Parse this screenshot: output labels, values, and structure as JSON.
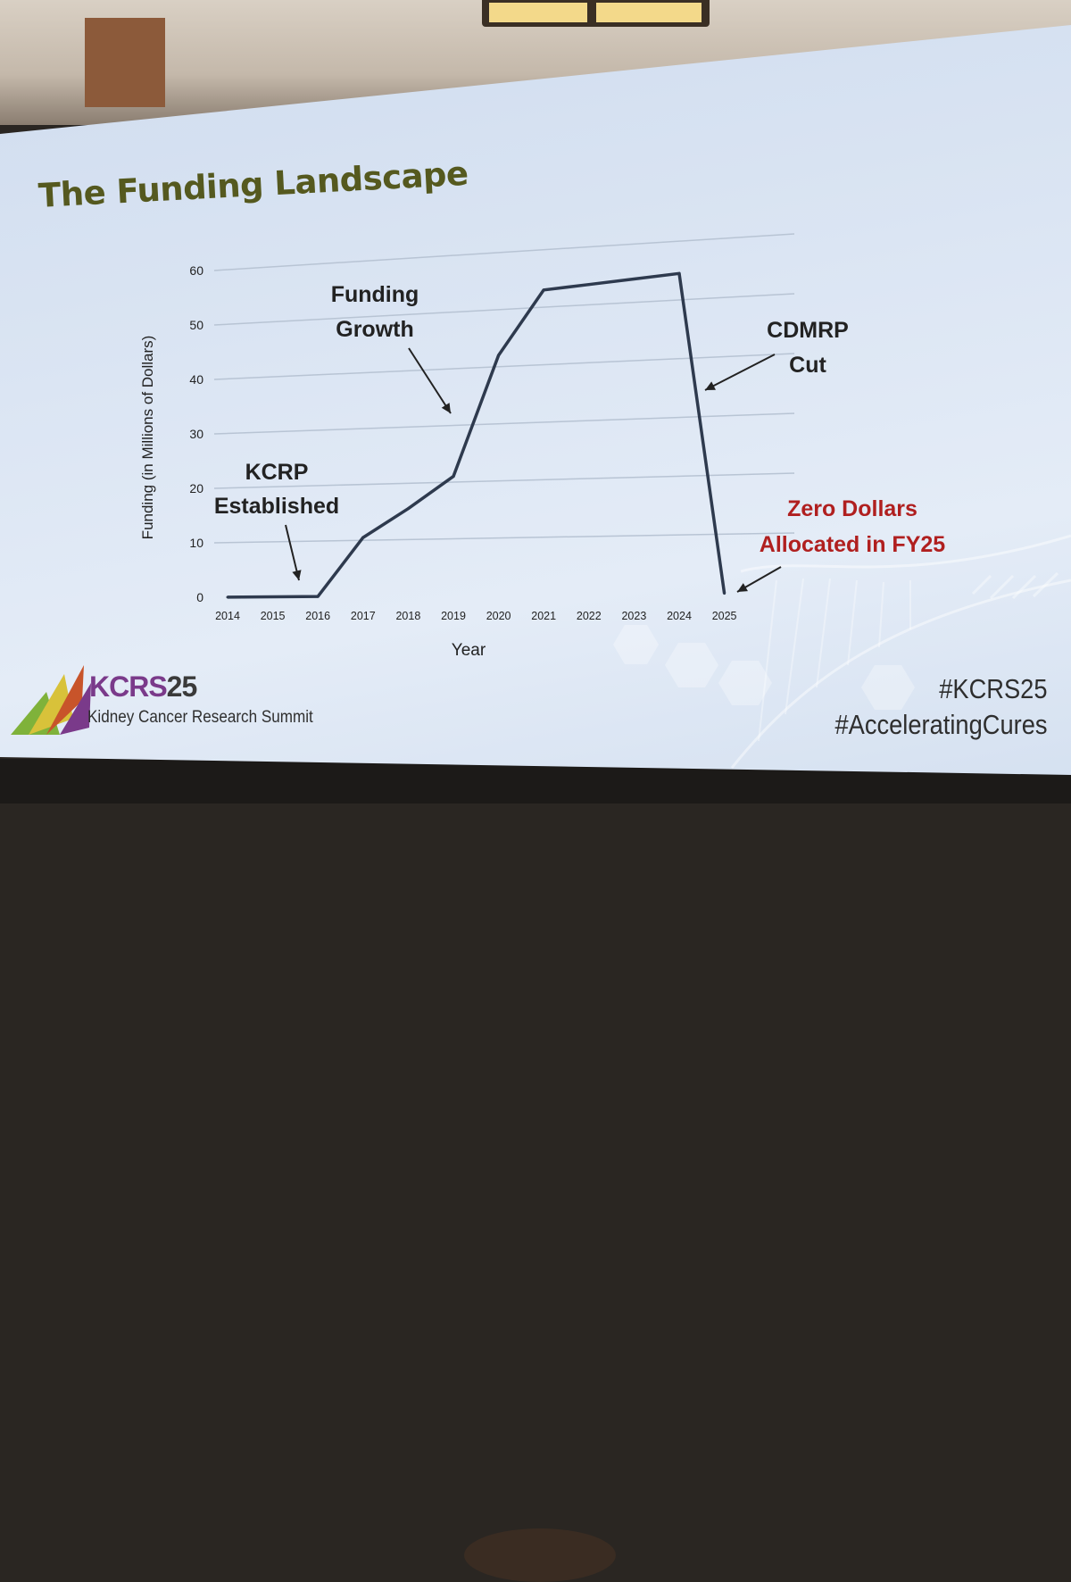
{
  "slide": {
    "title": "The Funding Landscape"
  },
  "chart_data": {
    "type": "line",
    "x": [
      "2014",
      "2015",
      "2016",
      "2017",
      "2018",
      "2019",
      "2020",
      "2021",
      "2022",
      "2023",
      "2024",
      "2025"
    ],
    "series": [
      {
        "values": [
          0,
          0,
          0,
          10.5,
          15.5,
          21,
          42,
          53,
          53.5,
          54,
          54.5,
          0
        ]
      }
    ],
    "xlabel": "Year",
    "ylabel": "Funding (in Millions of Dollars)",
    "ylim": [
      0,
      60
    ],
    "yticks": [
      "0",
      "10",
      "20",
      "30",
      "40",
      "50",
      "60"
    ],
    "grid": "horizontal",
    "annotations": [
      {
        "lines": [
          "KCRP",
          "Established"
        ],
        "color": "#222222",
        "points_to": "2016"
      },
      {
        "lines": [
          "Funding",
          "Growth"
        ],
        "color": "#222222",
        "points_to": "2019"
      },
      {
        "lines": [
          "CDMRP",
          "Cut"
        ],
        "color": "#222222",
        "points_to": "2024"
      },
      {
        "lines": [
          "Zero Dollars",
          "Allocated in FY25"
        ],
        "color": "#b01f1f",
        "points_to": "2025"
      }
    ],
    "line_color": "#2e3a4e"
  },
  "footer": {
    "logo_kcrs": "KCRS",
    "logo_year": "25",
    "logo_subtitle": "Kidney Cancer Research Summit",
    "hashtags": [
      "#KCRS25",
      "#AcceleratingCures"
    ]
  }
}
